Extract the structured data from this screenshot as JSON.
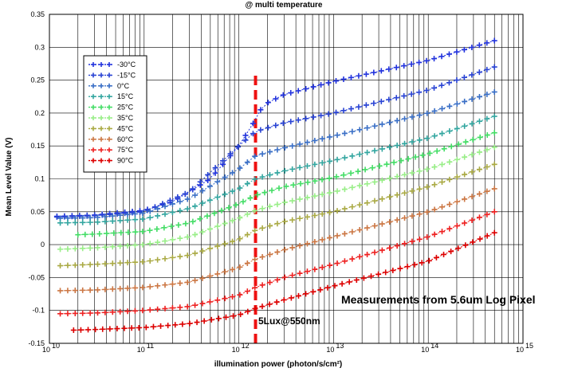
{
  "chart_data": {
    "type": "line",
    "title": "@ multi temperature",
    "xlabel": "illumination power (photon/s/cm²)",
    "ylabel": "Mean Level Value (V)",
    "xscale": "log",
    "xlim": [
      10000000000.0,
      1000000000000000.0
    ],
    "ylim": [
      -0.15,
      0.35
    ],
    "x_ticks": [
      {
        "base": "10",
        "exp": "10"
      },
      {
        "base": "10",
        "exp": "11"
      },
      {
        "base": "10",
        "exp": "12"
      },
      {
        "base": "10",
        "exp": "13"
      },
      {
        "base": "10",
        "exp": "14"
      },
      {
        "base": "10",
        "exp": "15"
      }
    ],
    "y_ticks": [
      "-0.15",
      "-0.1",
      "-0.05",
      "0",
      "0.05",
      "0.1",
      "0.15",
      "0.2",
      "0.25",
      "0.3",
      "0.35"
    ],
    "grid": true,
    "legend_position": "top-left",
    "marker": "plus",
    "line_style": "dotted",
    "series": [
      {
        "name": "-30°C",
        "color": "#2233dd",
        "x": [
          12000000000.0,
          30000000000.0,
          100000000000.0,
          200000000000.0,
          500000000000.0,
          1000000000000.0,
          1500000000000.0,
          1800000000000.0,
          3000000000000.0,
          10000000000000.0,
          100000000000000.0,
          500000000000000.0
        ],
        "values": [
          0.043,
          0.045,
          0.052,
          0.065,
          0.1,
          0.15,
          0.19,
          0.212,
          0.228,
          0.248,
          0.28,
          0.31
        ]
      },
      {
        "name": "-15°C",
        "color": "#2a44d4",
        "x": [
          12000000000.0,
          30000000000.0,
          100000000000.0,
          300000000000.0,
          1000000000000.0,
          1500000000000.0,
          3000000000000.0,
          10000000000000.0,
          100000000000000.0,
          500000000000000.0
        ],
        "values": [
          0.042,
          0.044,
          0.05,
          0.08,
          0.15,
          0.172,
          0.185,
          0.2,
          0.235,
          0.27
        ]
      },
      {
        "name": "0°C",
        "color": "#3a6fc6",
        "x": [
          13000000000.0,
          30000000000.0,
          100000000000.0,
          300000000000.0,
          1000000000000.0,
          1500000000000.0,
          3000000000000.0,
          10000000000000.0,
          100000000000000.0,
          500000000000000.0
        ],
        "values": [
          0.04,
          0.041,
          0.048,
          0.07,
          0.115,
          0.135,
          0.147,
          0.165,
          0.2,
          0.232
        ]
      },
      {
        "name": "15°C",
        "color": "#33a6a0",
        "x": [
          13000000000.0,
          30000000000.0,
          100000000000.0,
          300000000000.0,
          1000000000000.0,
          1500000000000.0,
          3000000000000.0,
          10000000000000.0,
          100000000000000.0,
          500000000000000.0
        ],
        "values": [
          0.033,
          0.034,
          0.039,
          0.055,
          0.085,
          0.1,
          0.112,
          0.128,
          0.162,
          0.195
        ]
      },
      {
        "name": "25°C",
        "color": "#44dd66",
        "x": [
          20000000000.0,
          30000000000.0,
          100000000000.0,
          300000000000.0,
          1000000000000.0,
          1500000000000.0,
          3000000000000.0,
          10000000000000.0,
          100000000000000.0,
          500000000000000.0
        ],
        "values": [
          0.015,
          0.016,
          0.02,
          0.033,
          0.062,
          0.075,
          0.088,
          0.102,
          0.138,
          0.17
        ]
      },
      {
        "name": "35°C",
        "color": "#99ee88",
        "x": [
          13000000000.0,
          30000000000.0,
          100000000000.0,
          300000000000.0,
          1000000000000.0,
          1500000000000.0,
          3000000000000.0,
          10000000000000.0,
          100000000000000.0,
          500000000000000.0
        ],
        "values": [
          -0.007,
          -0.005,
          0.0,
          0.012,
          0.04,
          0.052,
          0.064,
          0.08,
          0.115,
          0.148
        ]
      },
      {
        "name": "45°C",
        "color": "#aaaa44",
        "x": [
          13000000000.0,
          30000000000.0,
          100000000000.0,
          300000000000.0,
          1000000000000.0,
          1500000000000.0,
          3000000000000.0,
          10000000000000.0,
          100000000000000.0,
          500000000000000.0
        ],
        "values": [
          -0.032,
          -0.03,
          -0.026,
          -0.016,
          0.008,
          0.022,
          0.035,
          0.05,
          0.088,
          0.122
        ]
      },
      {
        "name": "60°C",
        "color": "#cc7744",
        "x": [
          13000000000.0,
          30000000000.0,
          100000000000.0,
          300000000000.0,
          1000000000000.0,
          1500000000000.0,
          3000000000000.0,
          10000000000000.0,
          100000000000000.0,
          500000000000000.0
        ],
        "values": [
          -0.07,
          -0.069,
          -0.065,
          -0.057,
          -0.035,
          -0.022,
          -0.008,
          0.012,
          0.05,
          0.085
        ]
      },
      {
        "name": "75°C",
        "color": "#ee2222",
        "x": [
          13000000000.0,
          30000000000.0,
          100000000000.0,
          300000000000.0,
          1000000000000.0,
          1500000000000.0,
          3000000000000.0,
          10000000000000.0,
          100000000000000.0,
          500000000000000.0
        ],
        "values": [
          -0.105,
          -0.104,
          -0.1,
          -0.094,
          -0.077,
          -0.065,
          -0.05,
          -0.03,
          0.012,
          0.05
        ]
      },
      {
        "name": "90°C",
        "color": "#dd0000",
        "x": [
          18000000000.0,
          30000000000.0,
          100000000000.0,
          300000000000.0,
          1000000000000.0,
          1500000000000.0,
          3000000000000.0,
          10000000000000.0,
          100000000000000.0,
          500000000000000.0
        ],
        "values": [
          -0.13,
          -0.129,
          -0.126,
          -0.12,
          -0.107,
          -0.097,
          -0.084,
          -0.063,
          -0.025,
          0.018
        ]
      }
    ],
    "reference_line": {
      "x": 1500000000000.0,
      "label": "5Lux@550nm",
      "color": "#ee1111"
    },
    "annotation": "Measurements from 5.6um Log Pixel"
  }
}
